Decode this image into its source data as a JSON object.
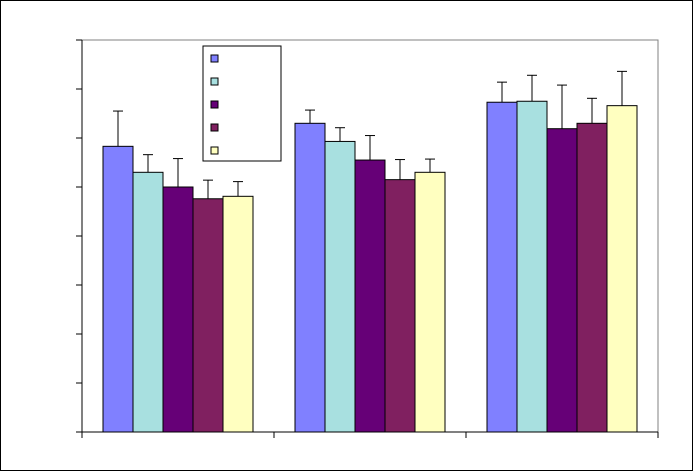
{
  "chart_data": {
    "type": "bar",
    "title": "",
    "xlabel": "",
    "ylabel": "",
    "categories": [
      "",
      "",
      ""
    ],
    "ylim": [
      0,
      8
    ],
    "y_major_step": 1,
    "grid": false,
    "legend_position": "top-center",
    "series": [
      {
        "color": "#8080FF",
        "values": [
          5.83,
          6.3,
          6.73
        ],
        "errors": [
          0.72,
          0.27,
          0.41
        ]
      },
      {
        "color": "#A8E0E0",
        "values": [
          5.3,
          5.93,
          6.75
        ],
        "errors": [
          0.36,
          0.28,
          0.53
        ]
      },
      {
        "color": "#660077",
        "values": [
          5.0,
          5.55,
          6.19
        ],
        "errors": [
          0.58,
          0.5,
          0.89
        ]
      },
      {
        "color": "#802060",
        "values": [
          4.76,
          5.15,
          6.3
        ],
        "errors": [
          0.38,
          0.41,
          0.51
        ]
      },
      {
        "color": "#FFFFC0",
        "values": [
          4.81,
          5.3,
          6.66
        ],
        "errors": [
          0.3,
          0.27,
          0.7
        ]
      }
    ]
  }
}
